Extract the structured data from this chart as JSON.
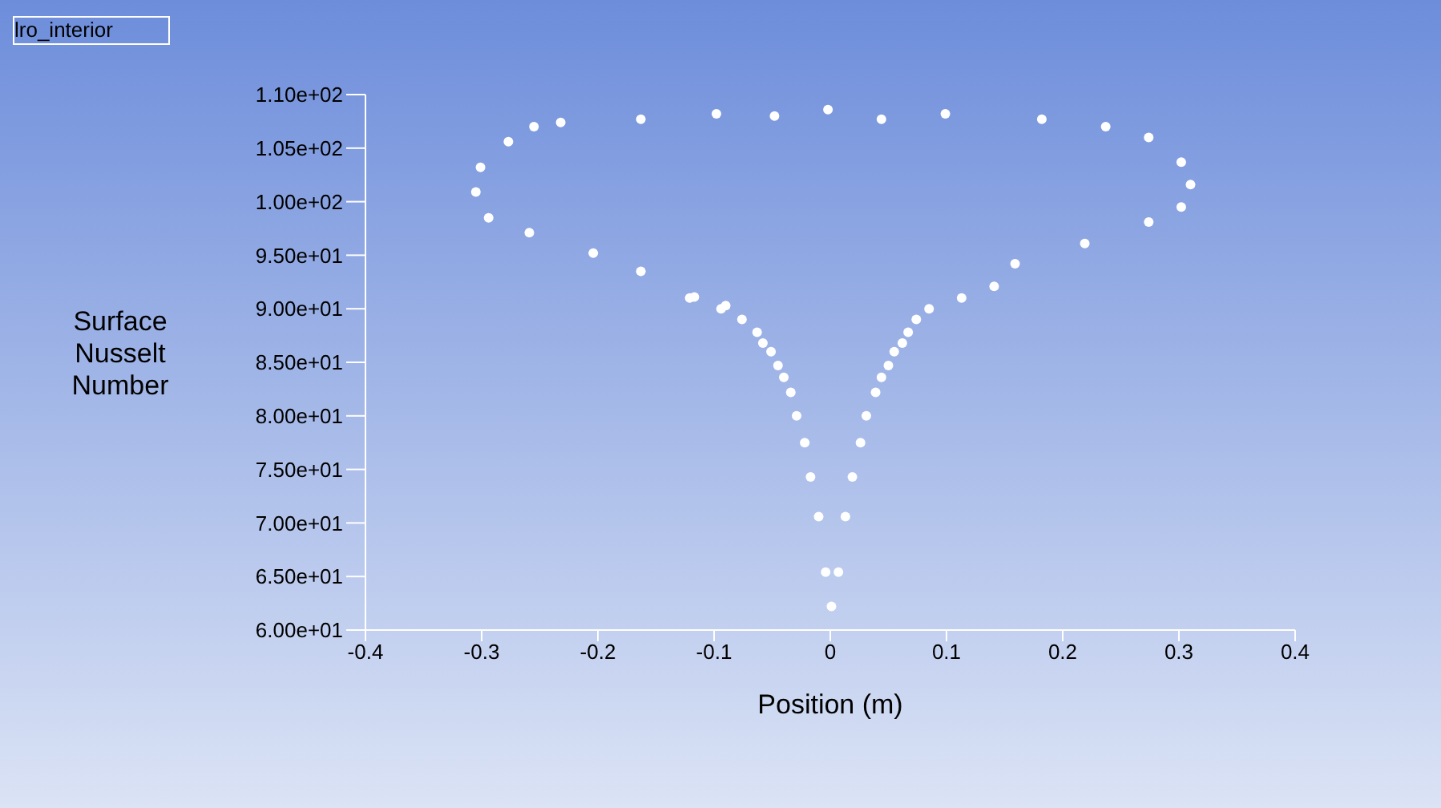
{
  "chart_data": {
    "type": "scatter",
    "xlabel": "Position (m)",
    "ylabel": "Surface Nusselt Number",
    "legend": "top left",
    "marker": "circle",
    "grid": false,
    "xlim": [
      -0.4,
      0.4
    ],
    "xticks": [
      -0.4,
      -0.3,
      -0.2,
      -0.1,
      0,
      0.1,
      0.2,
      0.3,
      0.4
    ],
    "ylim": [
      60,
      110
    ],
    "yticks": [
      {
        "value": 60,
        "label": "6.00e+01"
      },
      {
        "value": 65,
        "label": "6.50e+01"
      },
      {
        "value": 70,
        "label": "7.00e+01"
      },
      {
        "value": 75,
        "label": "7.50e+01"
      },
      {
        "value": 80,
        "label": "8.00e+01"
      },
      {
        "value": 85,
        "label": "8.50e+01"
      },
      {
        "value": 90,
        "label": "9.00e+01"
      },
      {
        "value": 95,
        "label": "9.50e+01"
      },
      {
        "value": 100,
        "label": "1.00e+02"
      },
      {
        "value": 105,
        "label": "1.05e+02"
      },
      {
        "value": 110,
        "label": "1.10e+02"
      }
    ],
    "series": [
      {
        "name": "lro_interior",
        "color": "#ffffff",
        "x": [
          0.001,
          -0.004,
          -0.01,
          -0.017,
          -0.022,
          -0.029,
          -0.034,
          -0.04,
          -0.045,
          -0.051,
          -0.058,
          -0.063,
          -0.076,
          -0.09,
          -0.094,
          -0.117,
          -0.121,
          -0.163,
          -0.204,
          -0.259,
          -0.294,
          -0.305,
          -0.301,
          -0.277,
          -0.255,
          -0.232,
          -0.163,
          -0.098,
          -0.048,
          -0.002,
          0.044,
          0.099,
          0.182,
          0.237,
          0.274,
          0.302,
          0.31,
          0.302,
          0.274,
          0.219,
          0.159,
          0.141,
          0.113,
          0.085,
          0.074,
          0.067,
          0.062,
          0.055,
          0.05,
          0.044,
          0.039,
          0.031,
          0.026,
          0.019,
          0.013,
          0.007
        ],
        "values": [
          62.2,
          65.4,
          70.6,
          74.3,
          77.5,
          80.0,
          82.2,
          83.6,
          84.7,
          86.0,
          86.8,
          87.8,
          89.0,
          90.3,
          90.0,
          91.1,
          91.0,
          93.5,
          95.2,
          97.1,
          98.5,
          100.9,
          103.2,
          105.6,
          107.0,
          107.4,
          107.7,
          108.2,
          108.0,
          108.6,
          107.7,
          108.2,
          107.7,
          107.0,
          106.0,
          103.7,
          101.6,
          99.5,
          98.1,
          96.1,
          94.2,
          92.1,
          91.0,
          90.0,
          89.0,
          87.8,
          86.8,
          86.0,
          84.7,
          83.6,
          82.2,
          80.0,
          77.5,
          74.3,
          70.6,
          65.4
        ]
      }
    ]
  }
}
